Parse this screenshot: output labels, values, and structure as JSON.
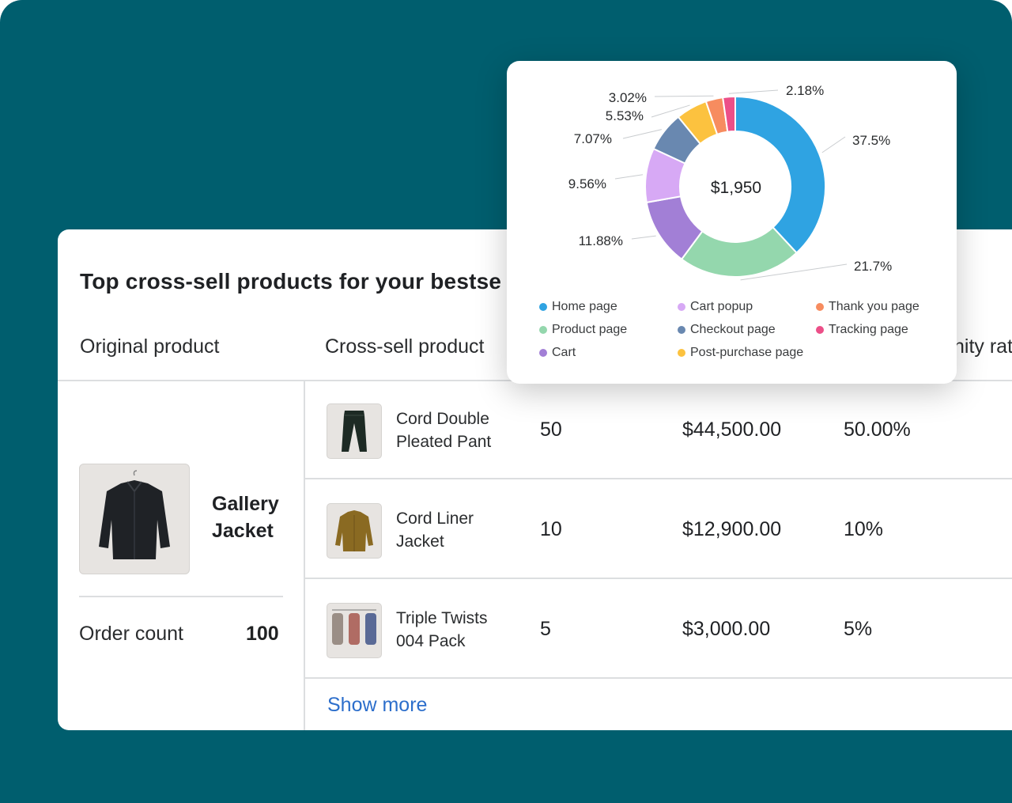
{
  "table": {
    "title": "Top cross-sell products for your bestse",
    "columns": {
      "original": "Original product",
      "cross_sell": "Cross-sell product",
      "rate_partial": "nity rat"
    },
    "original_product": {
      "name": "Gallery Jacket",
      "name_line1": "Gallery",
      "name_line2": "Jacket",
      "order_count_label": "Order count",
      "order_count_value": "100"
    },
    "rows": [
      {
        "name_line1": "Cord Double",
        "name_line2": "Pleated Pant",
        "orders": "50",
        "revenue": "$44,500.00",
        "rate": "50.00%",
        "thumb_icon": "pants-icon"
      },
      {
        "name_line1": "Cord Liner",
        "name_line2": "Jacket",
        "orders": "10",
        "revenue": "$12,900.00",
        "rate": "10%",
        "thumb_icon": "jacket-icon"
      },
      {
        "name_line1": "Triple Twists",
        "name_line2": "004 Pack",
        "orders": "5",
        "revenue": "$3,000.00",
        "rate": "5%",
        "thumb_icon": "socks-icon"
      }
    ],
    "show_more": "Show more"
  },
  "chart_data": {
    "type": "pie",
    "variant": "donut",
    "center_label": "$1,950",
    "slices": [
      {
        "name": "Home page",
        "value": 37.5,
        "label": "37.5%",
        "color": "#2fa3e2"
      },
      {
        "name": "Product page",
        "value": 21.7,
        "label": "21.7%",
        "color": "#94d7ad"
      },
      {
        "name": "Cart",
        "value": 11.88,
        "label": "11.88%",
        "color": "#a27fd6"
      },
      {
        "name": "Cart popup",
        "value": 9.56,
        "label": "9.56%",
        "color": "#d7a9f5"
      },
      {
        "name": "Checkout page",
        "value": 7.07,
        "label": "7.07%",
        "color": "#6988b0"
      },
      {
        "name": "Post-purchase page",
        "value": 5.53,
        "label": "5.53%",
        "color": "#fcc23f"
      },
      {
        "name": "Thank you page",
        "value": 3.02,
        "label": "3.02%",
        "color": "#f78c5f"
      },
      {
        "name": "Tracking page",
        "value": 2.18,
        "label": "2.18%",
        "color": "#ec4f88"
      }
    ],
    "legend": {
      "placement": "bottom",
      "columns": [
        [
          "Home page",
          "Product page",
          "Cart"
        ],
        [
          "Cart popup",
          "Checkout page",
          "Post-purchase page"
        ],
        [
          "Thank you page",
          "Tracking page"
        ]
      ]
    }
  }
}
